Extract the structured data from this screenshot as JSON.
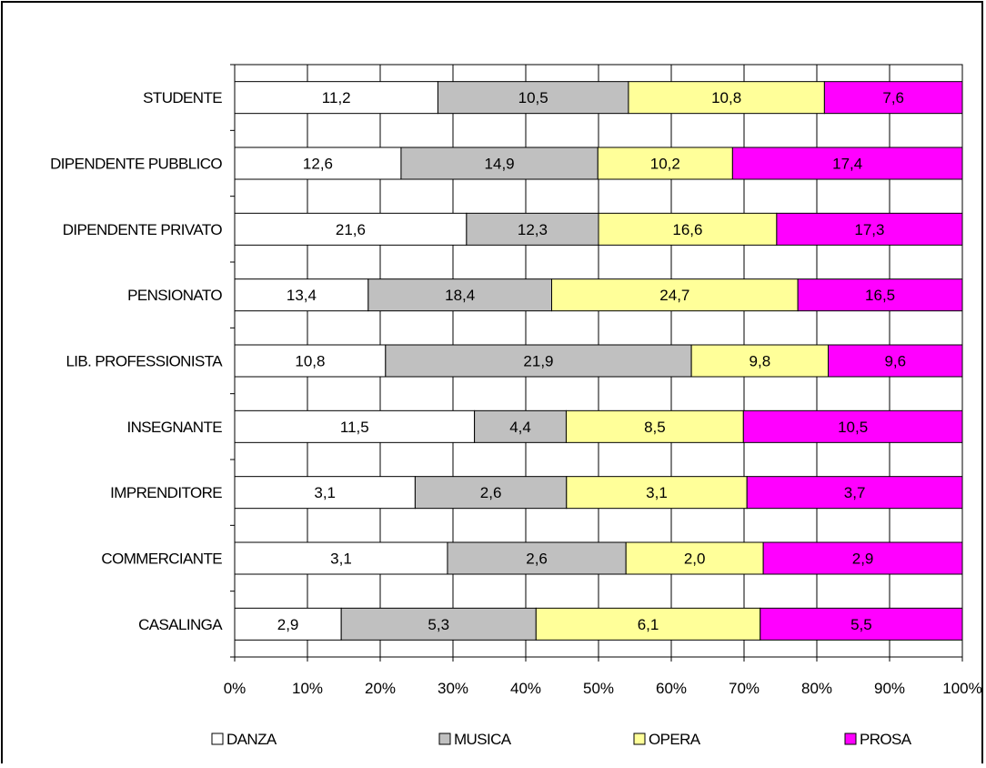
{
  "chart_data": {
    "type": "bar",
    "orientation": "horizontal",
    "stacked": "percent",
    "categories": [
      "STUDENTE",
      "DIPENDENTE PUBBLICO",
      "DIPENDENTE PRIVATO",
      "PENSIONATO",
      "LIB. PROFESSIONISTA",
      "INSEGNANTE",
      "IMPRENDITORE",
      "COMMERCIANTE",
      "CASALINGA"
    ],
    "series": [
      {
        "name": "DANZA",
        "color": "#ffffff",
        "values": [
          "11,2",
          "12,6",
          "21,6",
          "13,4",
          "10,8",
          "11,5",
          "3,1",
          "3,1",
          "2,9"
        ]
      },
      {
        "name": "MUSICA",
        "color": "#c0c0c0",
        "values": [
          "10,5",
          "14,9",
          "12,3",
          "18,4",
          "21,9",
          "4,4",
          "2,6",
          "2,6",
          "5,3"
        ]
      },
      {
        "name": "OPERA",
        "color": "#ffff99",
        "values": [
          "10,8",
          "10,2",
          "16,6",
          "24,7",
          "9,8",
          "8,5",
          "3,1",
          "2,0",
          "6,1"
        ]
      },
      {
        "name": "PROSA",
        "color": "#ff00ff",
        "values": [
          "7,6",
          "17,4",
          "17,3",
          "16,5",
          "9,6",
          "10,5",
          "3,7",
          "2,9",
          "5,5"
        ]
      }
    ],
    "x_ticks": [
      "0%",
      "10%",
      "20%",
      "30%",
      "40%",
      "50%",
      "60%",
      "70%",
      "80%",
      "90%",
      "100%"
    ],
    "xlim": [
      0,
      100
    ],
    "grid": true,
    "legend": "bottom"
  }
}
